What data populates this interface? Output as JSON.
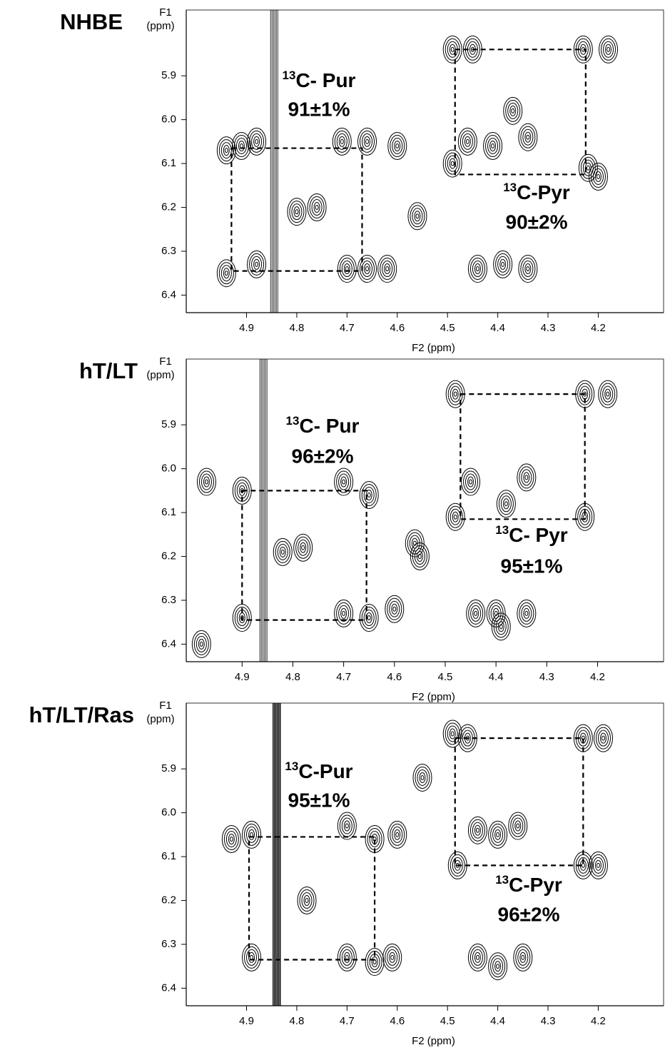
{
  "chart_data": [
    {
      "type": "contour",
      "title": "NHBE",
      "ylabel": [
        "F1",
        "(ppm)"
      ],
      "xlabel": "F2 (ppm)",
      "xlim": [
        5.02,
        4.07
      ],
      "ylim": [
        5.75,
        6.44
      ],
      "xticks": [
        4.9,
        4.8,
        4.7,
        4.6,
        4.5,
        4.4,
        4.3,
        4.2
      ],
      "yticks": [
        5.9,
        {
          "value": 6,
          "label": "6.0"
        },
        6.1,
        6.2,
        6.3,
        6.4
      ],
      "ridge": 4.845,
      "peaks": {
        "x": [
          4.94,
          4.91,
          4.88,
          4.71,
          4.66,
          4.6,
          4.94,
          4.88,
          4.7,
          4.66,
          4.62,
          4.8,
          4.76,
          4.56,
          4.49,
          4.45,
          4.23,
          4.18,
          4.37,
          4.34,
          4.49,
          4.46,
          4.41,
          4.22,
          4.2,
          4.44,
          4.39,
          4.34
        ],
        "y": [
          6.07,
          6.06,
          6.05,
          6.05,
          6.05,
          6.06,
          6.35,
          6.33,
          6.34,
          6.34,
          6.34,
          6.21,
          6.2,
          6.22,
          5.84,
          5.84,
          5.84,
          5.84,
          5.98,
          6.04,
          6.1,
          6.05,
          6.06,
          6.11,
          6.13,
          6.34,
          6.33,
          6.34
        ]
      },
      "boxes": [
        {
          "x": [
            4.93,
            4.67
          ],
          "y": [
            6.065,
            6.345
          ]
        },
        {
          "x": [
            4.485,
            4.225
          ],
          "y": [
            5.84,
            6.125
          ]
        }
      ],
      "annotations": [
        {
          "sup": "13",
          "text": "C- Pur",
          "label": "91±1%"
        },
        {
          "sup": "13",
          "text": "C-Pyr",
          "label": "90±2%"
        }
      ]
    },
    {
      "type": "contour",
      "title": "hT/LT",
      "ylabel": [
        "F1",
        "(ppm)"
      ],
      "xlabel": "F2 (ppm)",
      "xlim": [
        5.01,
        4.07
      ],
      "ylim": [
        5.75,
        6.44
      ],
      "xticks": [
        4.9,
        4.8,
        4.7,
        4.6,
        4.5,
        4.4,
        4.3,
        4.2
      ],
      "yticks": [
        5.9,
        {
          "value": 6,
          "label": "6.0"
        },
        6.1,
        6.2,
        6.3,
        6.4
      ],
      "ridge": 4.858,
      "peaks": {
        "x": [
          4.9,
          4.7,
          4.65,
          4.9,
          4.7,
          4.65,
          4.6,
          4.97,
          4.98,
          4.82,
          4.78,
          4.56,
          4.55,
          4.48,
          4.225,
          4.18,
          4.48,
          4.45,
          4.38,
          4.34,
          4.225,
          4.44,
          4.4,
          4.34,
          4.39
        ],
        "y": [
          6.05,
          6.03,
          6.06,
          6.34,
          6.33,
          6.34,
          6.32,
          6.03,
          6.4,
          6.19,
          6.18,
          6.17,
          6.2,
          5.83,
          5.83,
          5.83,
          6.11,
          6.03,
          6.08,
          6.02,
          6.11,
          6.33,
          6.33,
          6.33,
          6.36
        ]
      },
      "boxes": [
        {
          "x": [
            4.9,
            4.655
          ],
          "y": [
            6.05,
            6.345
          ]
        },
        {
          "x": [
            4.47,
            4.225
          ],
          "y": [
            5.83,
            6.115
          ]
        }
      ],
      "annotations": [
        {
          "sup": "13",
          "text": "C- Pur",
          "label": "96±2%"
        },
        {
          "sup": "13",
          "text": "C- Pyr",
          "label": "95±1%"
        }
      ]
    },
    {
      "type": "contour",
      "title": "hT/LT/Ras",
      "ylabel": [
        "F1",
        "(ppm)"
      ],
      "xlabel": "F2 (ppm)",
      "xlim": [
        5.02,
        4.07
      ],
      "ylim": [
        5.75,
        6.44
      ],
      "xticks": [
        4.9,
        4.8,
        4.7,
        4.6,
        4.5,
        4.4,
        4.3,
        4.2
      ],
      "yticks": [
        5.9,
        {
          "value": 6,
          "label": "6.0"
        },
        6.1,
        6.2,
        6.3,
        6.4
      ],
      "ridge": 4.84,
      "peaks": {
        "x": [
          4.93,
          4.89,
          4.7,
          4.645,
          4.6,
          4.89,
          4.7,
          4.645,
          4.61,
          4.78,
          4.49,
          4.46,
          4.23,
          4.19,
          4.48,
          4.44,
          4.4,
          4.36,
          4.23,
          4.2,
          4.44,
          4.4,
          4.35,
          4.55
        ],
        "y": [
          6.06,
          6.05,
          6.03,
          6.06,
          6.05,
          6.33,
          6.33,
          6.34,
          6.33,
          6.2,
          5.82,
          5.83,
          5.83,
          5.83,
          6.12,
          6.04,
          6.05,
          6.03,
          6.12,
          6.12,
          6.33,
          6.35,
          6.33,
          5.92
        ]
      },
      "boxes": [
        {
          "x": [
            4.895,
            4.645
          ],
          "y": [
            6.055,
            6.335
          ]
        },
        {
          "x": [
            4.485,
            4.23
          ],
          "y": [
            5.83,
            6.12
          ]
        }
      ],
      "annotations": [
        {
          "sup": "13",
          "text": "C-Pur",
          "label": "95±1%"
        },
        {
          "sup": "13",
          "text": "C-Pyr",
          "label": "96±2%"
        }
      ]
    }
  ]
}
